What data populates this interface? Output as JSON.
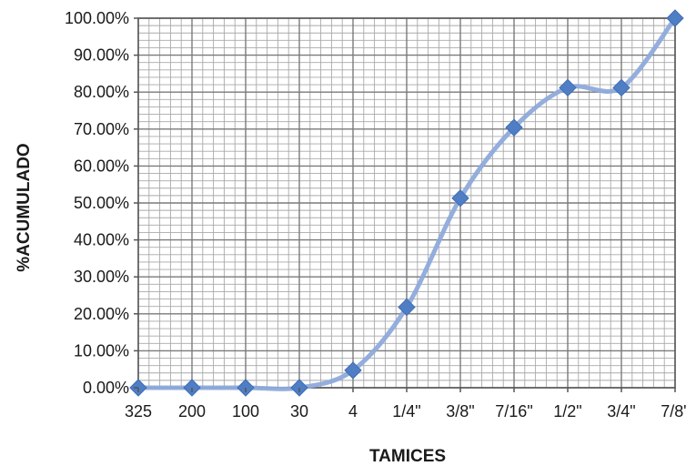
{
  "chart_data": {
    "type": "line",
    "title": "",
    "xlabel": "TAMICES",
    "ylabel": "%ACUMULADO",
    "categories": [
      "325",
      "200",
      "100",
      "30",
      "4",
      "1/4\"",
      "3/8\"",
      "7/16\"",
      "1/2\"",
      "3/4\"",
      "7/8\""
    ],
    "series": [
      {
        "values": [
          0.0,
          0.0,
          0.0,
          0.0,
          4.7,
          21.8,
          51.3,
          70.4,
          81.2,
          81.2,
          100.0
        ]
      }
    ],
    "ylim": [
      0,
      100
    ],
    "yticks": [
      "0.00%",
      "10.00%",
      "20.00%",
      "30.00%",
      "40.00%",
      "50.00%",
      "60.00%",
      "70.00%",
      "80.00%",
      "90.00%",
      "100.00%"
    ],
    "grid": true,
    "smooth": true,
    "marker": "diamond",
    "colors": {
      "line": "#8eaadb",
      "marker": "#4f7ec5",
      "grid": "#a9a9a9"
    }
  }
}
